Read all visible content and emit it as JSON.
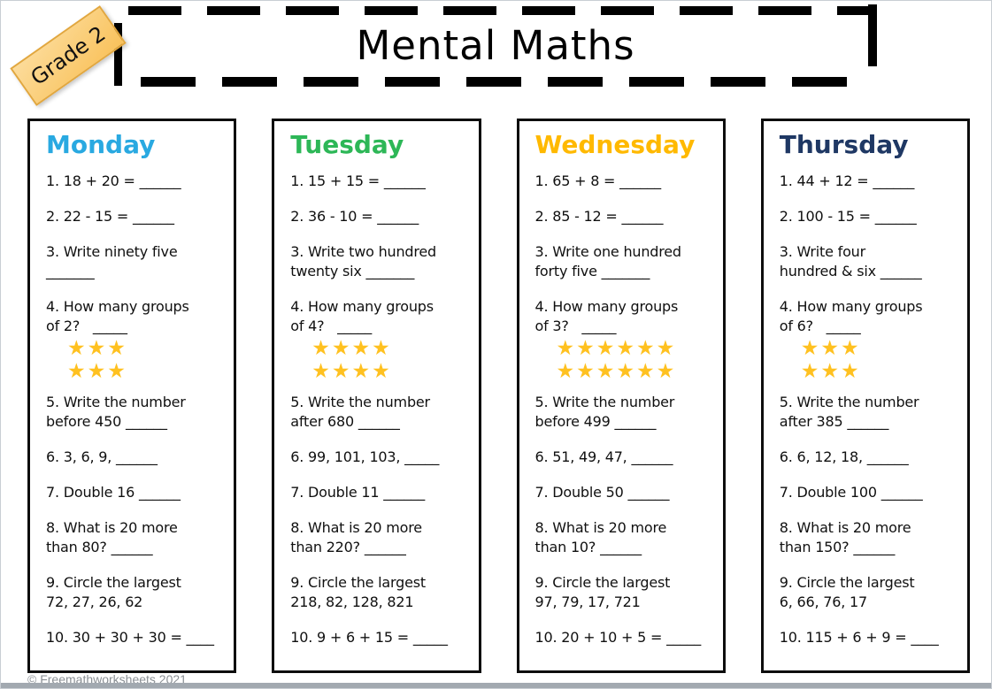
{
  "badge": {
    "label": "Grade 2",
    "fill": "#F9C25C",
    "border": "#E2A73E"
  },
  "header": {
    "title": "Mental Maths"
  },
  "footer": {
    "copyright": "© Freemathworksheets 2021"
  },
  "star": {
    "glyph": "★",
    "color": "#FFC120"
  },
  "columns": [
    {
      "day": "Monday",
      "color": "#29A9E1",
      "q1": "1. 18 + 20 = ______",
      "q2": "2. 22 - 15 = ______",
      "q3": "3. Write ninety five\n_______",
      "q4": "4. How many groups\nof 2?   _____",
      "star_rows": [
        3,
        3
      ],
      "q5": "5. Write the number\nbefore 450 ______",
      "q6": "6. 3, 6, 9, ______",
      "q7": "7. Double 16 ______",
      "q8": "8. What is 20 more\nthan 80? ______",
      "q9": "9. Circle the largest\n72, 27, 26, 62",
      "q10": "10. 30 + 30 + 30 = ____"
    },
    {
      "day": "Tuesday",
      "color": "#2DB757",
      "q1": "1. 15 + 15 = ______",
      "q2": "2. 36 - 10 = ______",
      "q3": "3. Write two hundred\ntwenty six _______",
      "q4": "4. How many groups\nof 4?   _____",
      "star_rows": [
        4,
        4
      ],
      "q5": "5. Write the number\nafter 680 ______",
      "q6": "6. 99, 101, 103, _____",
      "q7": "7. Double 11 ______",
      "q8": "8. What is 20 more\nthan 220? ______",
      "q9": "9. Circle the largest\n218, 82, 128, 821",
      "q10": "10. 9 + 6 + 15 = _____"
    },
    {
      "day": "Wednesday",
      "color": "#FFB900",
      "q1": "1. 65 + 8 = ______",
      "q2": "2. 85 - 12 = ______",
      "q3": "3. Write one hundred\nforty five _______",
      "q4": "4. How many groups\nof 3?   _____",
      "star_rows": [
        6,
        6
      ],
      "q5": "5. Write the number\nbefore 499 ______",
      "q6": "6. 51, 49, 47, ______",
      "q7": "7. Double 50 ______",
      "q8": "8. What is 20 more\nthan 10? ______",
      "q9": "9. Circle the largest\n97, 79, 17, 721",
      "q10": "10. 20 + 10 + 5 = _____"
    },
    {
      "day": "Thursday",
      "color": "#1F3864",
      "q1": "1. 44 + 12 = ______",
      "q2": "2. 100 - 15 = ______",
      "q3": "3. Write four\nhundred & six ______",
      "q4": "4. How many groups\nof 6?   _____",
      "star_rows": [
        3,
        3
      ],
      "q5": "5. Write the number\nafter 385 ______",
      "q6": "6. 6, 12, 18, ______",
      "q7": "7. Double 100 ______",
      "q8": "8. What is 20 more\nthan 150? ______",
      "q9": "9. Circle the largest\n6, 66, 76, 17",
      "q10": "10. 115 + 6 + 9 = ____"
    }
  ]
}
